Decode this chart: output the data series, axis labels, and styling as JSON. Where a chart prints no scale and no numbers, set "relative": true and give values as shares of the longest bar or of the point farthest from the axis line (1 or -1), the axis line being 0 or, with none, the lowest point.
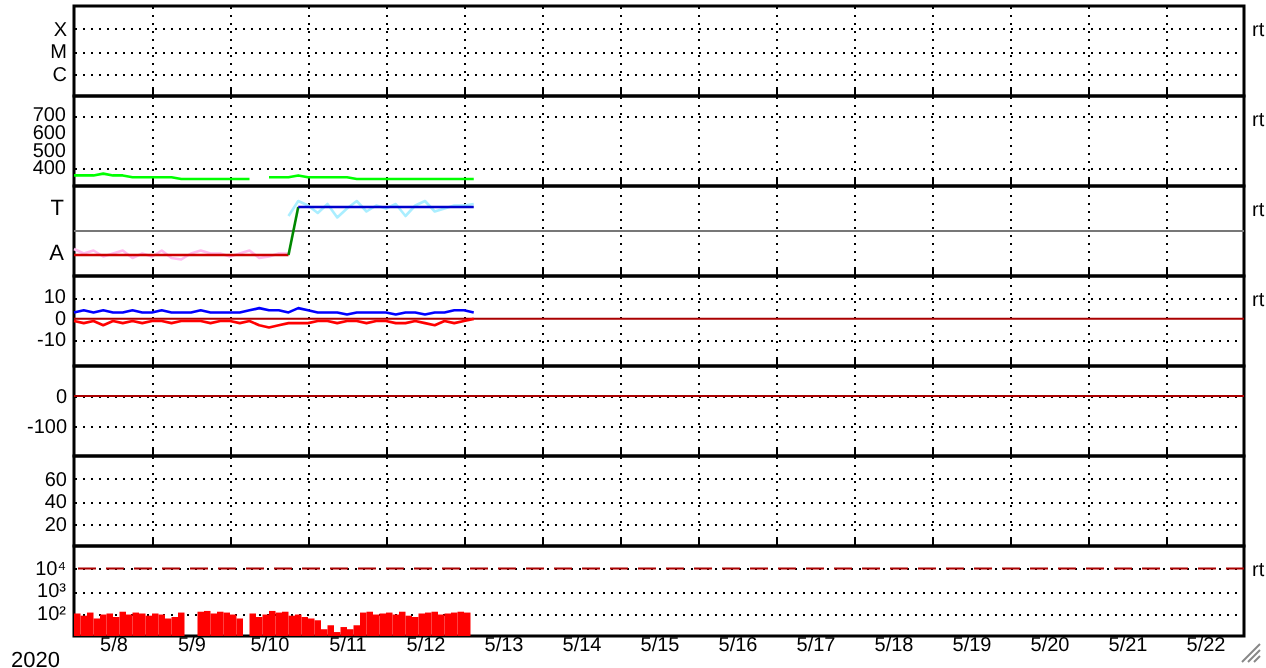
{
  "chart_data": [
    {
      "type": "other",
      "y_categories": [
        "X",
        "M",
        "C"
      ],
      "annotations": [
        "rt"
      ]
    },
    {
      "type": "line",
      "xlim": [
        "2020-05-08",
        "2020-05-23"
      ],
      "xticks": [
        {
          "value": "2020-05-09",
          "label": null
        },
        {
          "value": "2020-05-10",
          "label": null
        },
        {
          "value": "2020-05-11",
          "label": null
        },
        {
          "value": "2020-05-12",
          "label": null
        },
        {
          "value": "2020-05-13",
          "label": null
        },
        {
          "value": "2020-05-14",
          "label": null
        },
        {
          "value": "2020-05-15",
          "label": null
        },
        {
          "value": "2020-05-16",
          "label": null
        },
        {
          "value": "2020-05-17",
          "label": null
        },
        {
          "value": "2020-05-18",
          "label": null
        },
        {
          "value": "2020-05-19",
          "label": null
        },
        {
          "value": "2020-05-20",
          "label": null
        },
        {
          "value": "2020-05-21",
          "label": null
        },
        {
          "value": "2020-05-22",
          "label": null
        }
      ],
      "ylim": [
        300,
        810
      ],
      "yticks": [
        400,
        500,
        600,
        700
      ],
      "grid": true,
      "tick_labels": "y",
      "annotations": [
        "rt"
      ],
      "series": [
        {
          "color": "#00ff00",
          "x": [
            "2020-05-08T00:00",
            "2020-05-08T03:00",
            "2020-05-08T06:00",
            "2020-05-08T09:00",
            "2020-05-08T12:00",
            "2020-05-08T15:00",
            "2020-05-08T18:00",
            "2020-05-08T21:00",
            "2020-05-09T00:00",
            "2020-05-09T03:00",
            "2020-05-09T06:00",
            "2020-05-09T09:00",
            "2020-05-09T12:00",
            "2020-05-09T15:00",
            "2020-05-09T18:00",
            "2020-05-09T21:00",
            "2020-05-10T00:00",
            "2020-05-10T03:00",
            "2020-05-10T06:00",
            "2020-05-10T09:00",
            "2020-05-10T12:00",
            "2020-05-10T15:00",
            "2020-05-10T18:00",
            "2020-05-10T21:00",
            "2020-05-11T00:00",
            "2020-05-11T03:00",
            "2020-05-11T06:00",
            "2020-05-11T09:00",
            "2020-05-11T12:00",
            "2020-05-11T15:00",
            "2020-05-11T18:00",
            "2020-05-11T21:00",
            "2020-05-12T00:00",
            "2020-05-12T03:00",
            "2020-05-12T06:00",
            "2020-05-12T09:00",
            "2020-05-12T12:00",
            "2020-05-12T15:00",
            "2020-05-12T18:00",
            "2020-05-12T21:00",
            "2020-05-13T00:00",
            "2020-05-13T03:00"
          ],
          "values": [
            360,
            360,
            360,
            370,
            360,
            360,
            350,
            350,
            350,
            350,
            350,
            340,
            340,
            340,
            340,
            340,
            340,
            340,
            340,
            null,
            350,
            350,
            350,
            360,
            350,
            350,
            350,
            350,
            350,
            340,
            340,
            340,
            340,
            340,
            340,
            340,
            340,
            340,
            340,
            340,
            340,
            340
          ]
        }
      ]
    },
    {
      "type": "line",
      "relative": true,
      "xlim": [
        "2020-05-08",
        "2020-05-23"
      ],
      "xticks": [
        {
          "value": "2020-05-09",
          "label": null
        },
        {
          "value": "2020-05-10",
          "label": null
        },
        {
          "value": "2020-05-11",
          "label": null
        },
        {
          "value": "2020-05-12",
          "label": null
        },
        {
          "value": "2020-05-13",
          "label": null
        },
        {
          "value": "2020-05-14",
          "label": null
        },
        {
          "value": "2020-05-15",
          "label": null
        },
        {
          "value": "2020-05-16",
          "label": null
        },
        {
          "value": "2020-05-17",
          "label": null
        },
        {
          "value": "2020-05-18",
          "label": null
        },
        {
          "value": "2020-05-19",
          "label": null
        },
        {
          "value": "2020-05-20",
          "label": null
        },
        {
          "value": "2020-05-21",
          "label": null
        },
        {
          "value": "2020-05-22",
          "label": null
        }
      ],
      "grid": true,
      "tick_labels": "y",
      "annotations": [
        "rt",
        "T",
        "A"
      ],
      "series": [
        {
          "color": "#ffbbee",
          "x": [
            "2020-05-08T00:00",
            "2020-05-08T03:00",
            "2020-05-08T06:00",
            "2020-05-08T09:00",
            "2020-05-08T12:00",
            "2020-05-08T15:00",
            "2020-05-08T18:00",
            "2020-05-08T21:00",
            "2020-05-09T00:00",
            "2020-05-09T03:00",
            "2020-05-09T06:00",
            "2020-05-09T09:00",
            "2020-05-09T12:00",
            "2020-05-09T15:00",
            "2020-05-09T18:00",
            "2020-05-09T21:00",
            "2020-05-10T00:00",
            "2020-05-10T03:00",
            "2020-05-10T06:00",
            "2020-05-10T09:00",
            "2020-05-10T12:00",
            "2020-05-10T15:00",
            "2020-05-10T18:00"
          ],
          "values": [
            -0.6,
            -0.75,
            -0.65,
            -0.85,
            -0.75,
            -0.65,
            -0.9,
            -0.75,
            -0.85,
            -0.65,
            -0.9,
            -0.95,
            -0.75,
            -0.65,
            -0.75,
            -0.75,
            -0.85,
            -0.75,
            -0.65,
            -0.9,
            -0.85,
            -0.75,
            -0.75
          ]
        },
        {
          "color": "#aaeeff",
          "x": [
            "2020-05-10T18:00",
            "2020-05-10T21:00",
            "2020-05-11T00:00",
            "2020-05-11T03:00",
            "2020-05-11T06:00",
            "2020-05-11T09:00",
            "2020-05-11T12:00",
            "2020-05-11T15:00",
            "2020-05-11T18:00",
            "2020-05-11T21:00",
            "2020-05-12T00:00",
            "2020-05-12T03:00",
            "2020-05-12T06:00",
            "2020-05-12T09:00",
            "2020-05-12T12:00",
            "2020-05-12T15:00",
            "2020-05-12T18:00",
            "2020-05-12T21:00",
            "2020-05-13T00:00",
            "2020-05-13T03:00"
          ],
          "values": [
            0.5,
            1.0,
            0.85,
            0.6,
            0.9,
            0.45,
            0.75,
            1.0,
            0.65,
            0.85,
            0.75,
            0.9,
            0.5,
            0.85,
            1.0,
            0.65,
            0.75,
            0.85,
            0.85,
            0.9
          ]
        },
        {
          "color": "#cc0000",
          "x": [
            "2020-05-08T00:00",
            "2020-05-10T18:00"
          ],
          "values": [
            -0.8,
            -0.8
          ]
        },
        {
          "color": "#008800",
          "x": [
            "2020-05-10T18:00",
            "2020-05-10T21:00"
          ],
          "values": [
            -0.8,
            0.8
          ]
        },
        {
          "color": "#0000cc",
          "x": [
            "2020-05-10T21:00",
            "2020-05-13T03:00"
          ],
          "values": [
            0.8,
            0.8
          ]
        }
      ]
    },
    {
      "type": "line",
      "xlim": [
        "2020-05-08",
        "2020-05-23"
      ],
      "xticks": [
        {
          "value": "2020-05-09",
          "label": null
        },
        {
          "value": "2020-05-10",
          "label": null
        },
        {
          "value": "2020-05-11",
          "label": null
        },
        {
          "value": "2020-05-12",
          "label": null
        },
        {
          "value": "2020-05-13",
          "label": null
        },
        {
          "value": "2020-05-14",
          "label": null
        },
        {
          "value": "2020-05-15",
          "label": null
        },
        {
          "value": "2020-05-16",
          "label": null
        },
        {
          "value": "2020-05-17",
          "label": null
        },
        {
          "value": "2020-05-18",
          "label": null
        },
        {
          "value": "2020-05-19",
          "label": null
        },
        {
          "value": "2020-05-20",
          "label": null
        },
        {
          "value": "2020-05-21",
          "label": null
        },
        {
          "value": "2020-05-22",
          "label": null
        }
      ],
      "ylim": [
        -22,
        20
      ],
      "yticks": [
        10,
        0,
        -10
      ],
      "grid": true,
      "tick_labels": "y",
      "annotations": [
        "rt"
      ],
      "ref_lines": [
        {
          "axis": "y",
          "value": 0,
          "color": "#aa0000"
        }
      ],
      "series": [
        {
          "color": "#0000ff",
          "x": [
            "2020-05-08T00:00",
            "2020-05-08T03:00",
            "2020-05-08T06:00",
            "2020-05-08T09:00",
            "2020-05-08T12:00",
            "2020-05-08T15:00",
            "2020-05-08T18:00",
            "2020-05-08T21:00",
            "2020-05-09T00:00",
            "2020-05-09T03:00",
            "2020-05-09T06:00",
            "2020-05-09T09:00",
            "2020-05-09T12:00",
            "2020-05-09T15:00",
            "2020-05-09T18:00",
            "2020-05-09T21:00",
            "2020-05-10T00:00",
            "2020-05-10T03:00",
            "2020-05-10T06:00",
            "2020-05-10T09:00",
            "2020-05-10T12:00",
            "2020-05-10T15:00",
            "2020-05-10T18:00",
            "2020-05-10T21:00",
            "2020-05-11T00:00",
            "2020-05-11T03:00",
            "2020-05-11T06:00",
            "2020-05-11T09:00",
            "2020-05-11T12:00",
            "2020-05-11T15:00",
            "2020-05-11T18:00",
            "2020-05-11T21:00",
            "2020-05-12T00:00",
            "2020-05-12T03:00",
            "2020-05-12T06:00",
            "2020-05-12T09:00",
            "2020-05-12T12:00",
            "2020-05-12T15:00",
            "2020-05-12T18:00",
            "2020-05-12T21:00",
            "2020-05-13T00:00",
            "2020-05-13T03:00"
          ],
          "values": [
            3,
            4,
            3,
            4,
            3,
            3,
            4,
            3,
            3,
            4,
            3,
            3,
            3,
            4,
            3,
            3,
            3,
            3,
            4,
            5,
            4,
            4,
            3,
            5,
            4,
            3,
            3,
            3,
            2,
            3,
            3,
            3,
            3,
            2,
            3,
            3,
            2,
            3,
            3,
            4,
            4,
            3
          ]
        },
        {
          "color": "#ff0000",
          "x": [
            "2020-05-08T00:00",
            "2020-05-08T03:00",
            "2020-05-08T06:00",
            "2020-05-08T09:00",
            "2020-05-08T12:00",
            "2020-05-08T15:00",
            "2020-05-08T18:00",
            "2020-05-08T21:00",
            "2020-05-09T00:00",
            "2020-05-09T03:00",
            "2020-05-09T06:00",
            "2020-05-09T09:00",
            "2020-05-09T12:00",
            "2020-05-09T15:00",
            "2020-05-09T18:00",
            "2020-05-09T21:00",
            "2020-05-10T00:00",
            "2020-05-10T03:00",
            "2020-05-10T06:00",
            "2020-05-10T09:00",
            "2020-05-10T12:00",
            "2020-05-10T15:00",
            "2020-05-10T18:00",
            "2020-05-10T21:00",
            "2020-05-11T00:00",
            "2020-05-11T03:00",
            "2020-05-11T06:00",
            "2020-05-11T09:00",
            "2020-05-11T12:00",
            "2020-05-11T15:00",
            "2020-05-11T18:00",
            "2020-05-11T21:00",
            "2020-05-12T00:00",
            "2020-05-12T03:00",
            "2020-05-12T06:00",
            "2020-05-12T09:00",
            "2020-05-12T12:00",
            "2020-05-12T15:00",
            "2020-05-12T18:00",
            "2020-05-12T21:00",
            "2020-05-13T00:00",
            "2020-05-13T03:00"
          ],
          "values": [
            -1,
            -2,
            -1,
            -3,
            -1,
            -2,
            -1,
            -2,
            -1,
            -1,
            -2,
            -1,
            -1,
            -1,
            -2,
            -1,
            -1,
            -2,
            -1,
            -3,
            -4,
            -3,
            -2,
            -2,
            -2,
            -1,
            -1,
            -2,
            -1,
            -1,
            -2,
            -1,
            -1,
            -2,
            -2,
            -1,
            -2,
            -3,
            -1,
            -2,
            -1,
            0
          ]
        }
      ]
    },
    {
      "type": "other",
      "y_categories": [
        "0",
        "-100"
      ],
      "ref_lines": [
        {
          "axis": "y",
          "value": "0",
          "color": "#aa0000"
        }
      ]
    },
    {
      "type": "other",
      "y_categories": [
        "60",
        "40",
        "20"
      ]
    },
    {
      "type": "bar",
      "xlabel": "2020",
      "xlim": [
        "2020-05-08",
        "2020-05-23"
      ],
      "xticks": [
        {
          "value": "2020-05-08T12:00",
          "label": "5/8"
        },
        {
          "value": "2020-05-09",
          "label": null
        },
        {
          "value": "2020-05-09T12:00",
          "label": "5/9"
        },
        {
          "value": "2020-05-10",
          "label": null
        },
        {
          "value": "2020-05-10T12:00",
          "label": "5/10"
        },
        {
          "value": "2020-05-11",
          "label": null
        },
        {
          "value": "2020-05-11T12:00",
          "label": "5/11"
        },
        {
          "value": "2020-05-12",
          "label": null
        },
        {
          "value": "2020-05-12T12:00",
          "label": "5/12"
        },
        {
          "value": "2020-05-13",
          "label": null
        },
        {
          "value": "2020-05-13T12:00",
          "label": "5/13"
        },
        {
          "value": "2020-05-14",
          "label": null
        },
        {
          "value": "2020-05-14T12:00",
          "label": "5/14"
        },
        {
          "value": "2020-05-15",
          "label": null
        },
        {
          "value": "2020-05-15T12:00",
          "label": "5/15"
        },
        {
          "value": "2020-05-16",
          "label": null
        },
        {
          "value": "2020-05-16T12:00",
          "label": "5/16"
        },
        {
          "value": "2020-05-17",
          "label": null
        },
        {
          "value": "2020-05-17T12:00",
          "label": "5/17"
        },
        {
          "value": "2020-05-18",
          "label": null
        },
        {
          "value": "2020-05-18T12:00",
          "label": "5/18"
        },
        {
          "value": "2020-05-19",
          "label": null
        },
        {
          "value": "2020-05-19T12:00",
          "label": "5/19"
        },
        {
          "value": "2020-05-20",
          "label": null
        },
        {
          "value": "2020-05-20T12:00",
          "label": "5/20"
        },
        {
          "value": "2020-05-21",
          "label": null
        },
        {
          "value": "2020-05-21T12:00",
          "label": "5/21"
        },
        {
          "value": "2020-05-22",
          "label": null
        },
        {
          "value": "2020-05-22T12:00",
          "label": "5/22"
        }
      ],
      "ylim": [
        10,
        100000
      ],
      "log": true,
      "yticks": [
        {
          "value": 10000,
          "label": "10⁴"
        },
        {
          "value": 1000,
          "label": "10³"
        },
        {
          "value": 100,
          "label": "10²"
        }
      ],
      "grid": true,
      "annotations": [
        "rt"
      ],
      "ref_lines": [
        {
          "axis": "y",
          "value": 10000,
          "color": "#aa0000",
          "line_style": "dashed"
        }
      ],
      "series": [
        {
          "color": "#ff0000",
          "x": [
            "2020-05-08T00:00",
            "2020-05-08T02:00",
            "2020-05-08T04:00",
            "2020-05-08T06:00",
            "2020-05-08T08:00",
            "2020-05-08T10:00",
            "2020-05-08T12:00",
            "2020-05-08T14:00",
            "2020-05-08T16:00",
            "2020-05-08T18:00",
            "2020-05-08T20:00",
            "2020-05-08T22:00",
            "2020-05-09T00:00",
            "2020-05-09T02:00",
            "2020-05-09T04:00",
            "2020-05-09T06:00",
            "2020-05-09T08:00",
            "2020-05-09T10:00",
            "2020-05-09T12:00",
            "2020-05-09T14:00",
            "2020-05-09T16:00",
            "2020-05-09T18:00",
            "2020-05-09T20:00",
            "2020-05-09T22:00",
            "2020-05-10T00:00",
            "2020-05-10T02:00",
            "2020-05-10T04:00",
            "2020-05-10T06:00",
            "2020-05-10T08:00",
            "2020-05-10T10:00",
            "2020-05-10T12:00",
            "2020-05-10T14:00",
            "2020-05-10T16:00",
            "2020-05-10T18:00",
            "2020-05-10T20:00",
            "2020-05-10T22:00",
            "2020-05-11T00:00",
            "2020-05-11T02:00",
            "2020-05-11T04:00",
            "2020-05-11T06:00",
            "2020-05-11T08:00",
            "2020-05-11T10:00",
            "2020-05-11T12:00",
            "2020-05-11T14:00",
            "2020-05-11T16:00",
            "2020-05-11T18:00",
            "2020-05-11T20:00",
            "2020-05-11T22:00",
            "2020-05-12T00:00",
            "2020-05-12T02:00",
            "2020-05-12T04:00",
            "2020-05-12T06:00",
            "2020-05-12T08:00",
            "2020-05-12T10:00",
            "2020-05-12T12:00",
            "2020-05-12T14:00",
            "2020-05-12T16:00",
            "2020-05-12T18:00",
            "2020-05-12T20:00",
            "2020-05-12T22:00",
            "2020-05-13T00:00"
          ],
          "values": [
            100,
            80,
            110,
            60,
            90,
            100,
            70,
            120,
            90,
            110,
            100,
            80,
            100,
            90,
            60,
            70,
            110,
            null,
            null,
            120,
            130,
            100,
            120,
            110,
            90,
            60,
            null,
            100,
            70,
            90,
            130,
            110,
            120,
            80,
            90,
            70,
            60,
            50,
            20,
            30,
            15,
            25,
            20,
            30,
            110,
            120,
            90,
            100,
            110,
            90,
            120,
            80,
            70,
            100,
            110,
            120,
            90,
            100,
            110,
            120,
            110
          ]
        }
      ]
    }
  ]
}
